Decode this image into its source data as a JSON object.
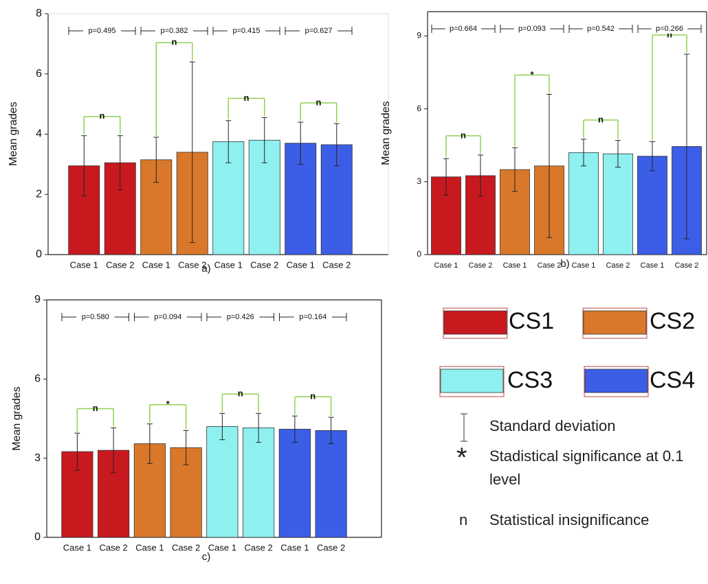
{
  "chart_data": [
    {
      "type": "bar",
      "caption": "a)",
      "y_label": "Mean grades",
      "ylim": [
        0,
        8
      ],
      "yticks": [
        0,
        2,
        4,
        6,
        8
      ],
      "categories": [
        "Case 1",
        "Case 2",
        "Case 1",
        "Case 2",
        "Case 1",
        "Case 2",
        "Case 1",
        "Case 2"
      ],
      "groups": [
        {
          "values": [
            2.95,
            3.05
          ],
          "errors": [
            1.0,
            0.9
          ],
          "p_label": "p=0.495",
          "significance": "n"
        },
        {
          "values": [
            3.15,
            3.4
          ],
          "errors": [
            0.75,
            3.0
          ],
          "p_label": "p=0.382",
          "significance": "n"
        },
        {
          "values": [
            3.75,
            3.8
          ],
          "errors": [
            0.7,
            0.75
          ],
          "p_label": "p=0.415",
          "significance": "n"
        },
        {
          "values": [
            3.7,
            3.65
          ],
          "errors": [
            0.7,
            0.7
          ],
          "p_label": "p=0.627",
          "significance": "n"
        }
      ]
    },
    {
      "type": "bar",
      "caption": "b)",
      "y_label": "Mean grades",
      "ylim": [
        0,
        10
      ],
      "yticks": [
        0,
        3,
        6,
        9
      ],
      "categories": [
        "Case 1",
        "Case 2",
        "Case 1",
        "Case 2",
        "Case 1",
        "Case 2",
        "Case 1",
        "Case 2"
      ],
      "groups": [
        {
          "values": [
            3.2,
            3.25
          ],
          "errors": [
            0.75,
            0.85
          ],
          "p_label": "p=0.664",
          "significance": "n"
        },
        {
          "values": [
            3.5,
            3.65
          ],
          "errors": [
            0.9,
            2.95
          ],
          "p_label": "p=0.093",
          "significance": "*"
        },
        {
          "values": [
            4.2,
            4.15
          ],
          "errors": [
            0.55,
            0.55
          ],
          "p_label": "p=0.542",
          "significance": "n"
        },
        {
          "values": [
            4.05,
            4.45
          ],
          "errors": [
            0.6,
            3.8
          ],
          "p_label": "p=0.266",
          "significance": "n"
        }
      ]
    },
    {
      "type": "bar",
      "caption": "c)",
      "y_label": "Mean grades",
      "ylim": [
        0,
        9
      ],
      "yticks": [
        0,
        3,
        6,
        9
      ],
      "categories": [
        "Case 1",
        "Case 2",
        "Case 1",
        "Case 2",
        "Case 1",
        "Case 2",
        "Case 1",
        "Case 2"
      ],
      "groups": [
        {
          "values": [
            3.25,
            3.3
          ],
          "errors": [
            0.7,
            0.85
          ],
          "p_label": "p=0.580",
          "significance": "n"
        },
        {
          "values": [
            3.55,
            3.4
          ],
          "errors": [
            0.75,
            0.65
          ],
          "p_label": "p=0.094",
          "significance": "*"
        },
        {
          "values": [
            4.2,
            4.15
          ],
          "errors": [
            0.5,
            0.55
          ],
          "p_label": "p=0.426",
          "significance": "n"
        },
        {
          "values": [
            4.1,
            4.05
          ],
          "errors": [
            0.5,
            0.5
          ],
          "p_label": "p=0.164",
          "significance": "n"
        }
      ]
    }
  ],
  "legend": {
    "items": [
      {
        "name": "CS1",
        "color": "#c8191f"
      },
      {
        "name": "CS2",
        "color": "#d9782a"
      },
      {
        "name": "CS3",
        "color": "#8ff0f0"
      },
      {
        "name": "CS4",
        "color": "#3c5ee6"
      }
    ],
    "notes": [
      {
        "text": "Standard deviation"
      },
      {
        "symbol": "*",
        "text": "Stadistical significance at 0.1 level"
      },
      {
        "symbol": "n",
        "text": "Statistical insignificance"
      }
    ]
  }
}
